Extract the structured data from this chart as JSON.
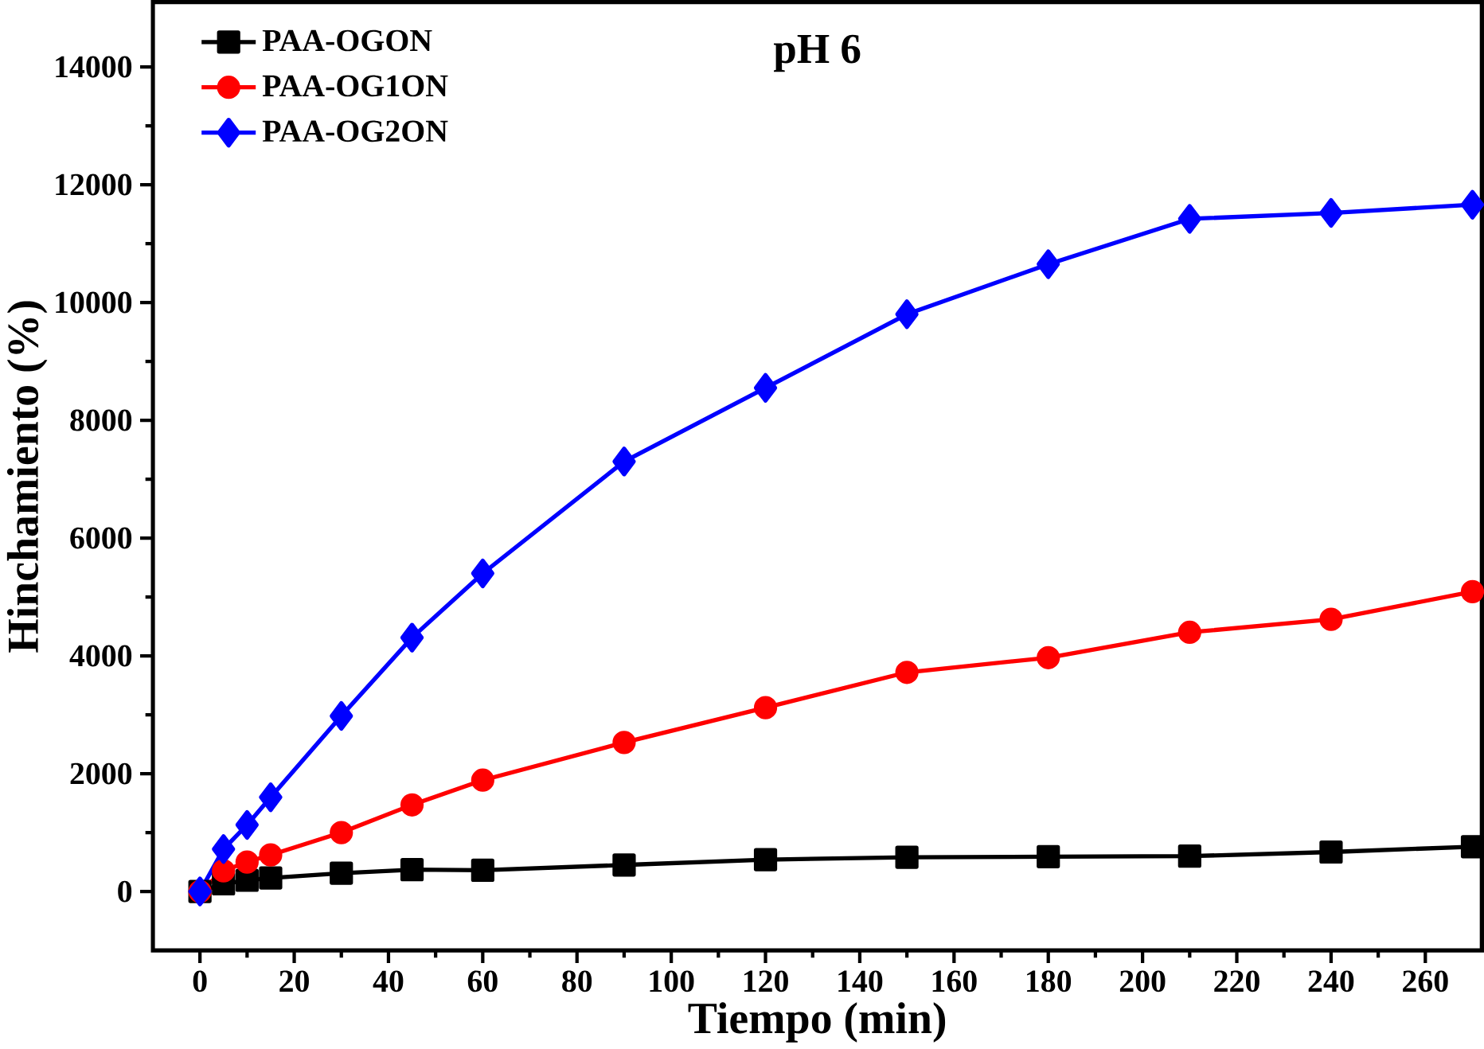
{
  "chart_data": {
    "type": "line",
    "title": "pH 6",
    "xlabel": "Tiempo (min)",
    "ylabel": "Hinchamiento (%)",
    "x": [
      0,
      5,
      10,
      15,
      30,
      45,
      60,
      90,
      120,
      150,
      180,
      210,
      240,
      270
    ],
    "series": [
      {
        "name": "PAA-OGON",
        "color": "#000000",
        "marker": "square",
        "values": [
          0,
          130,
          190,
          230,
          310,
          370,
          360,
          450,
          540,
          580,
          590,
          600,
          670,
          760
        ]
      },
      {
        "name": "PAA-OG1ON",
        "color": "#ff0000",
        "marker": "circle",
        "values": [
          0,
          350,
          500,
          620,
          1000,
          1470,
          1890,
          2530,
          3120,
          3720,
          3970,
          4400,
          4620,
          5090
        ]
      },
      {
        "name": "PAA-OG2ON",
        "color": "#0000ff",
        "marker": "diamond",
        "values": [
          0,
          720,
          1130,
          1600,
          2980,
          4310,
          5400,
          7300,
          8550,
          9800,
          10650,
          11420,
          11520,
          11660
        ]
      }
    ],
    "xlim": [
      -10,
      272
    ],
    "ylim": [
      -1000,
      15100
    ],
    "xticks": [
      0,
      20,
      40,
      60,
      80,
      100,
      120,
      140,
      160,
      180,
      200,
      220,
      240,
      260
    ],
    "yticks": [
      0,
      2000,
      4000,
      6000,
      8000,
      10000,
      12000,
      14000
    ],
    "grid": false,
    "legend": "top left",
    "line_style": "solid"
  }
}
